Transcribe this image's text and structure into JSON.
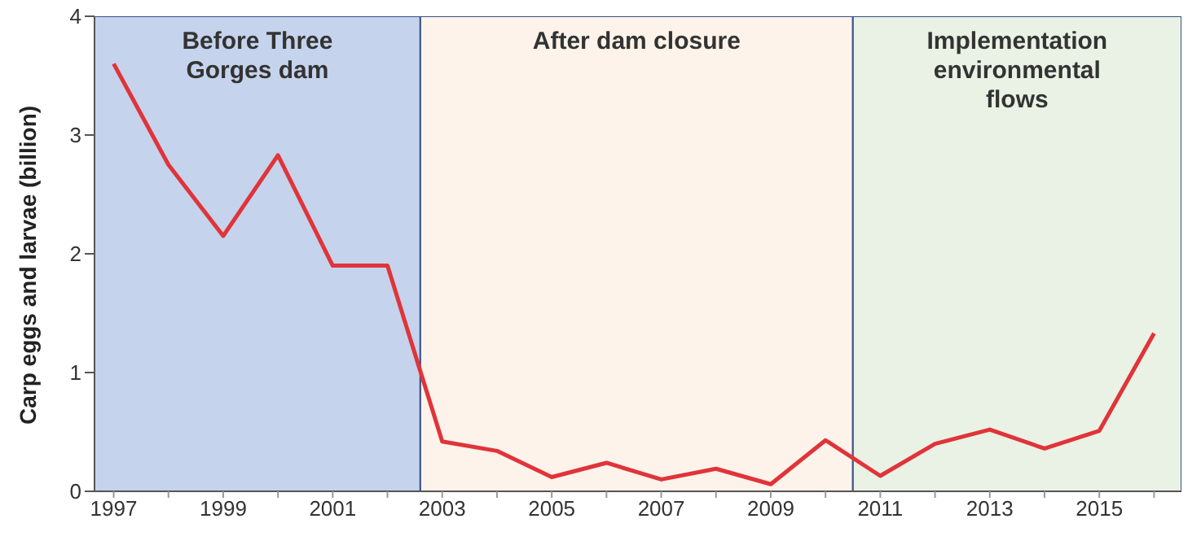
{
  "chart_data": {
    "type": "line",
    "ylabel": "Carp eggs and larvae (billion)",
    "x": [
      1997,
      1998,
      1999,
      2000,
      2001,
      2002,
      2003,
      2004,
      2005,
      2006,
      2007,
      2008,
      2009,
      2010,
      2011,
      2012,
      2013,
      2014,
      2015,
      2016
    ],
    "series": [
      {
        "color": "#e0343a",
        "values": [
          3.6,
          2.75,
          2.15,
          2.83,
          1.9,
          1.9,
          0.42,
          0.34,
          0.12,
          0.24,
          0.1,
          0.19,
          0.06,
          0.43,
          0.13,
          0.4,
          0.52,
          0.36,
          0.51,
          1.33
        ]
      }
    ],
    "xlim": [
      1996.65,
      2016.5
    ],
    "xticks": [
      1997,
      {
        "value": 1998,
        "label": null
      },
      1999,
      {
        "value": 2000,
        "label": null
      },
      2001,
      {
        "value": 2002,
        "label": null
      },
      2003,
      {
        "value": 2004,
        "label": null
      },
      2005,
      {
        "value": 2006,
        "label": null
      },
      2007,
      {
        "value": 2008,
        "label": null
      },
      2009,
      {
        "value": 2010,
        "label": null
      },
      2011,
      {
        "value": 2012,
        "label": null
      },
      2013,
      {
        "value": 2014,
        "label": null
      },
      2015,
      {
        "value": 2016,
        "label": null
      }
    ],
    "ylim": [
      0,
      4
    ],
    "yticks": [
      0,
      1,
      2,
      3,
      4
    ],
    "bands": [
      {
        "axis": "x",
        "from": 1996.65,
        "to": 2002.6,
        "label": "Before Three Gorges dam",
        "color": "#c5d3ec"
      },
      {
        "axis": "x",
        "from": 2002.6,
        "to": 2010.5,
        "label": "After dam closure",
        "color": "#fdf3ea"
      },
      {
        "axis": "x",
        "from": 2010.5,
        "to": 2016.5,
        "label": "Implementation environmental flows",
        "color": "#e9f2e4"
      }
    ],
    "grid": false,
    "legend": false,
    "marker": "none",
    "line_style": "solid"
  }
}
